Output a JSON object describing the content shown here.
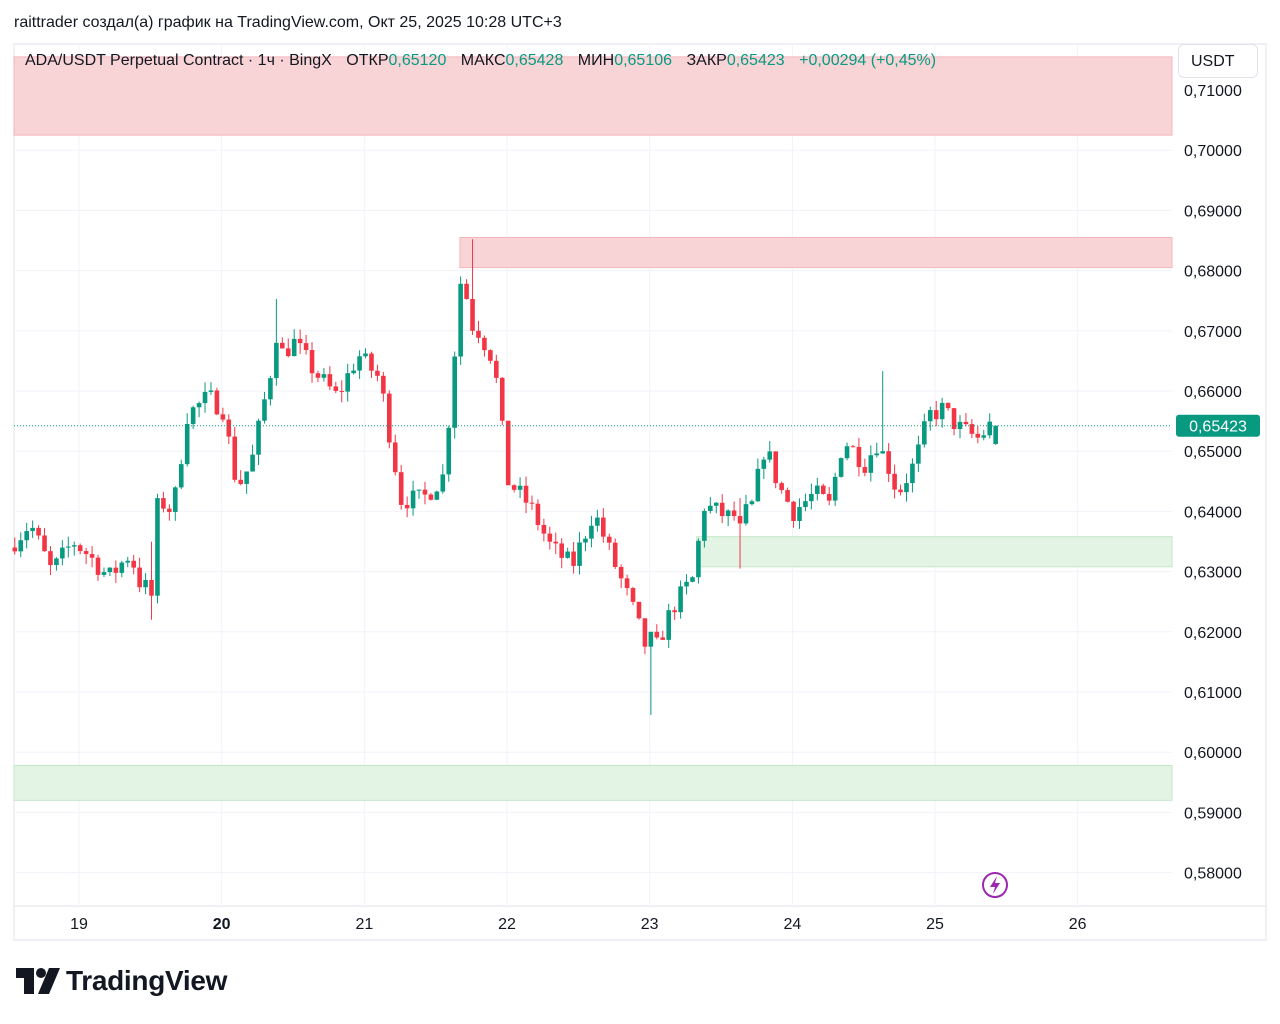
{
  "header": {
    "text": "raittrader создал(а) график на TradingView.com, Окт 25, 2025 10:28 UTC+3"
  },
  "legend": {
    "symbol": "ADA/USDT Perpetual Contract · 1ч · BingX",
    "open_label": "ОТКР",
    "open": "0,65120",
    "high_label": "МАКС",
    "high": "0,65428",
    "low_label": "МИН",
    "low": "0,65106",
    "close_label": "ЗАКР",
    "close": "0,65423",
    "change": "+0,00294 (+0,45%)"
  },
  "currency": "USDT",
  "brand": "TradingView",
  "colors": {
    "up": "#089981",
    "down": "#f23645",
    "resistance_zone": "#f9d4d7",
    "support_zone": "#e3f4e4",
    "grid": "#f0f3fa"
  },
  "chart_data": {
    "type": "candlestick",
    "y_axis": {
      "ylim": [
        0.575,
        0.715
      ],
      "tick_labels": [
        "0,71000",
        "0,70000",
        "0,69000",
        "0,68000",
        "0,67000",
        "0,66000",
        "0,65000",
        "0,64000",
        "0,63000",
        "0,62000",
        "0,61000",
        "0,60000",
        "0,59000",
        "0,58000"
      ],
      "ticks": [
        0.71,
        0.7,
        0.69,
        0.68,
        0.67,
        0.66,
        0.65,
        0.64,
        0.63,
        0.62,
        0.61,
        0.6,
        0.59,
        0.58
      ]
    },
    "x_axis": {
      "tick_labels": [
        "19",
        "20",
        "21",
        "22",
        "23",
        "24",
        "25",
        "26"
      ],
      "ticks": [
        19,
        20,
        21,
        22,
        23,
        24,
        25,
        26
      ],
      "xlim": [
        18.55,
        26.7
      ],
      "bold_label": "20"
    },
    "last_price": {
      "value": 0.65423,
      "label": "0,65423"
    },
    "zones": [
      {
        "kind": "resistance",
        "x_start": 18.55,
        "x_end": 26.65,
        "y_low": 0.7025,
        "y_high": 0.7155
      },
      {
        "kind": "resistance",
        "x_start": 21.67,
        "x_end": 26.65,
        "y_low": 0.6805,
        "y_high": 0.6855
      },
      {
        "kind": "support",
        "x_start": 23.33,
        "x_end": 26.65,
        "y_low": 0.6308,
        "y_high": 0.6358
      },
      {
        "kind": "support",
        "x_start": 18.55,
        "x_end": 26.65,
        "y_low": 0.592,
        "y_high": 0.5978
      }
    ],
    "waypoints": [
      [
        18.55,
        0.634
      ],
      [
        18.7,
        0.638
      ],
      [
        18.85,
        0.63
      ],
      [
        19.0,
        0.635
      ],
      [
        19.1,
        0.633
      ],
      [
        19.25,
        0.629
      ],
      [
        19.4,
        0.633
      ],
      [
        19.5,
        0.626
      ],
      [
        19.6,
        0.642
      ],
      [
        19.7,
        0.64
      ],
      [
        19.8,
        0.656
      ],
      [
        19.95,
        0.659
      ],
      [
        20.05,
        0.657
      ],
      [
        20.15,
        0.644
      ],
      [
        20.25,
        0.648
      ],
      [
        20.4,
        0.665
      ],
      [
        20.55,
        0.668
      ],
      [
        20.7,
        0.663
      ],
      [
        20.85,
        0.659
      ],
      [
        21.0,
        0.666
      ],
      [
        21.15,
        0.662
      ],
      [
        21.3,
        0.642
      ],
      [
        21.45,
        0.642
      ],
      [
        21.6,
        0.646
      ],
      [
        21.72,
        0.679
      ],
      [
        21.8,
        0.672
      ],
      [
        21.95,
        0.665
      ],
      [
        22.05,
        0.645
      ],
      [
        22.2,
        0.641
      ],
      [
        22.35,
        0.634
      ],
      [
        22.5,
        0.631
      ],
      [
        22.65,
        0.64
      ],
      [
        22.8,
        0.631
      ],
      [
        22.92,
        0.624
      ],
      [
        23.05,
        0.615
      ],
      [
        23.2,
        0.624
      ],
      [
        23.35,
        0.629
      ],
      [
        23.42,
        0.641
      ],
      [
        23.6,
        0.639
      ],
      [
        23.75,
        0.64
      ],
      [
        23.85,
        0.651
      ],
      [
        23.95,
        0.644
      ],
      [
        24.05,
        0.64
      ],
      [
        24.2,
        0.643
      ],
      [
        24.3,
        0.641
      ],
      [
        24.4,
        0.652
      ],
      [
        24.55,
        0.648
      ],
      [
        24.65,
        0.652
      ],
      [
        24.78,
        0.643
      ],
      [
        24.9,
        0.648
      ],
      [
        25.0,
        0.656
      ],
      [
        25.1,
        0.657
      ],
      [
        25.2,
        0.654
      ],
      [
        25.35,
        0.652
      ],
      [
        25.42,
        0.6542
      ]
    ],
    "extremes": [
      [
        21.75,
        0.6852,
        0.67
      ],
      [
        23.0,
        0.6062,
        0.62
      ],
      [
        24.62,
        0.6633,
        0.65
      ],
      [
        20.39,
        0.6753,
        0.668
      ],
      [
        19.5,
        0.622,
        0.626
      ],
      [
        23.62,
        0.6305,
        0.638
      ]
    ]
  }
}
